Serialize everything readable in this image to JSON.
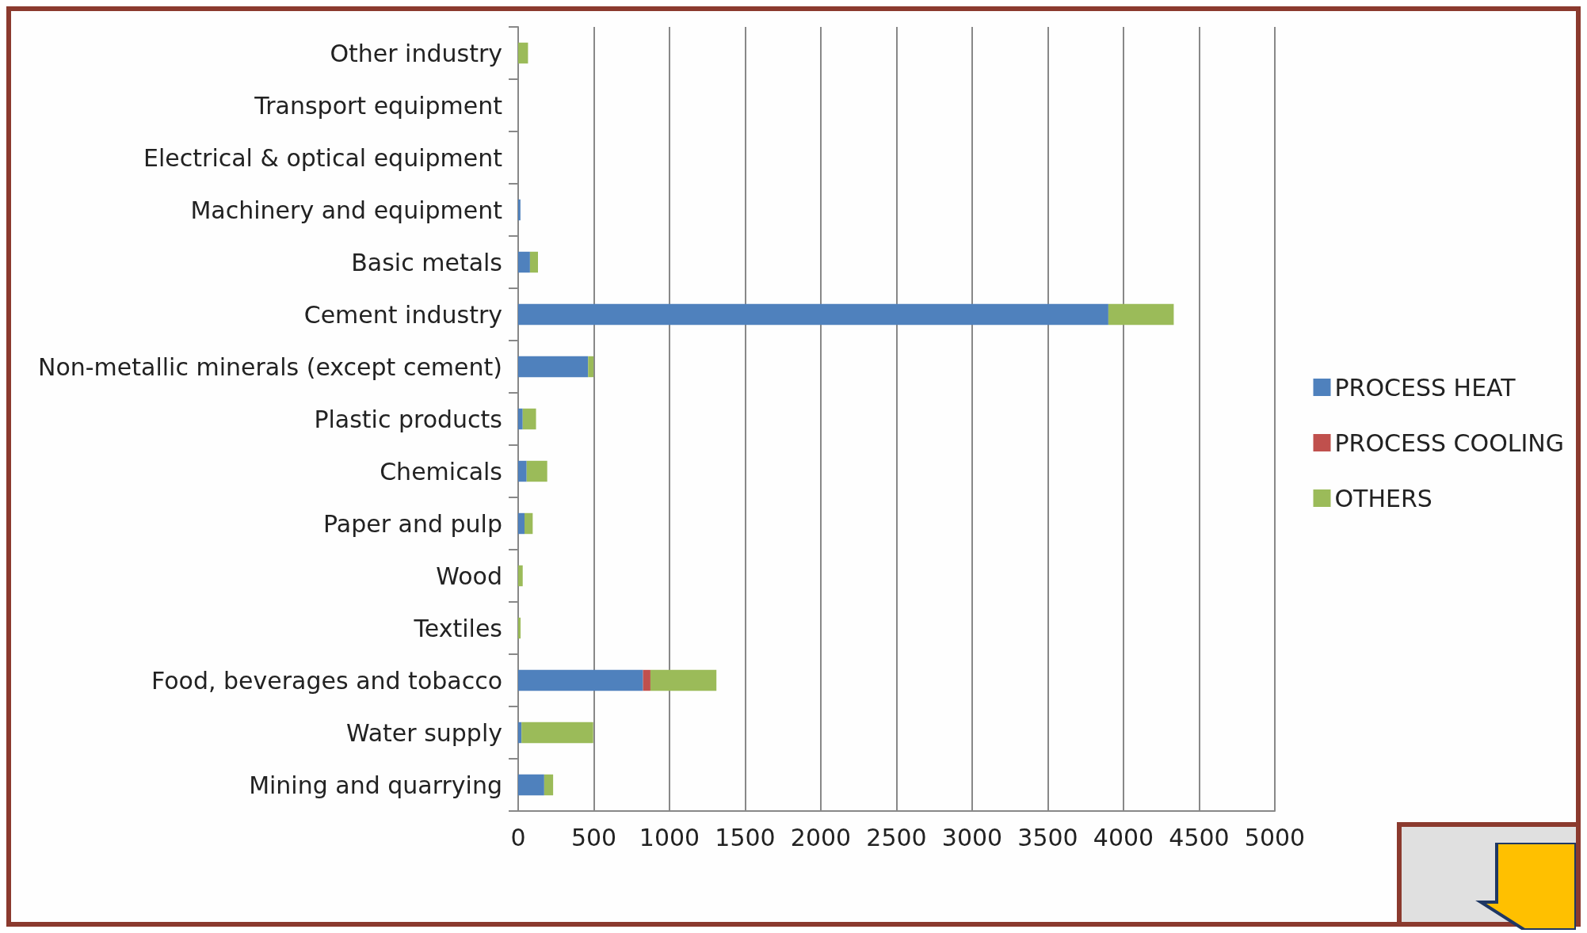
{
  "chart_data": {
    "type": "bar",
    "orientation": "horizontal",
    "stacked": true,
    "categories": [
      "Other industry",
      "Transport equipment",
      "Electrical & optical equipment",
      "Machinery and equipment",
      "Basic metals",
      "Cement industry",
      "Non-metallic minerals (except cement)",
      "Plastic products",
      "Chemicals",
      "Paper and pulp",
      "Wood",
      "Textiles",
      "Food, beverages and tobacco",
      "Water supply",
      "Mining and quarrying"
    ],
    "series": [
      {
        "name": "PROCESS HEAT",
        "color": "#4f81bd",
        "values": [
          null,
          0,
          0,
          15,
          78,
          3900,
          462,
          30,
          56,
          42,
          null,
          0,
          825,
          22,
          172
        ]
      },
      {
        "name": "PROCESS COOLING",
        "color": "#c0504d",
        "values": [
          0,
          0,
          0,
          0,
          0,
          0,
          0,
          0,
          0,
          0,
          0,
          0,
          49,
          0,
          0
        ]
      },
      {
        "name": "OTHERS",
        "color": "#9bbb59",
        "values": [
          65,
          null,
          0,
          null,
          53,
          432,
          36,
          88,
          136,
          54,
          30,
          16,
          436,
          474,
          59
        ]
      }
    ],
    "xlim": [
      0,
      5000
    ],
    "xticks": [
      0,
      500,
      1000,
      1500,
      2000,
      2500,
      3000,
      3500,
      4000,
      4500,
      5000
    ],
    "grid": "x",
    "legend": "right"
  }
}
